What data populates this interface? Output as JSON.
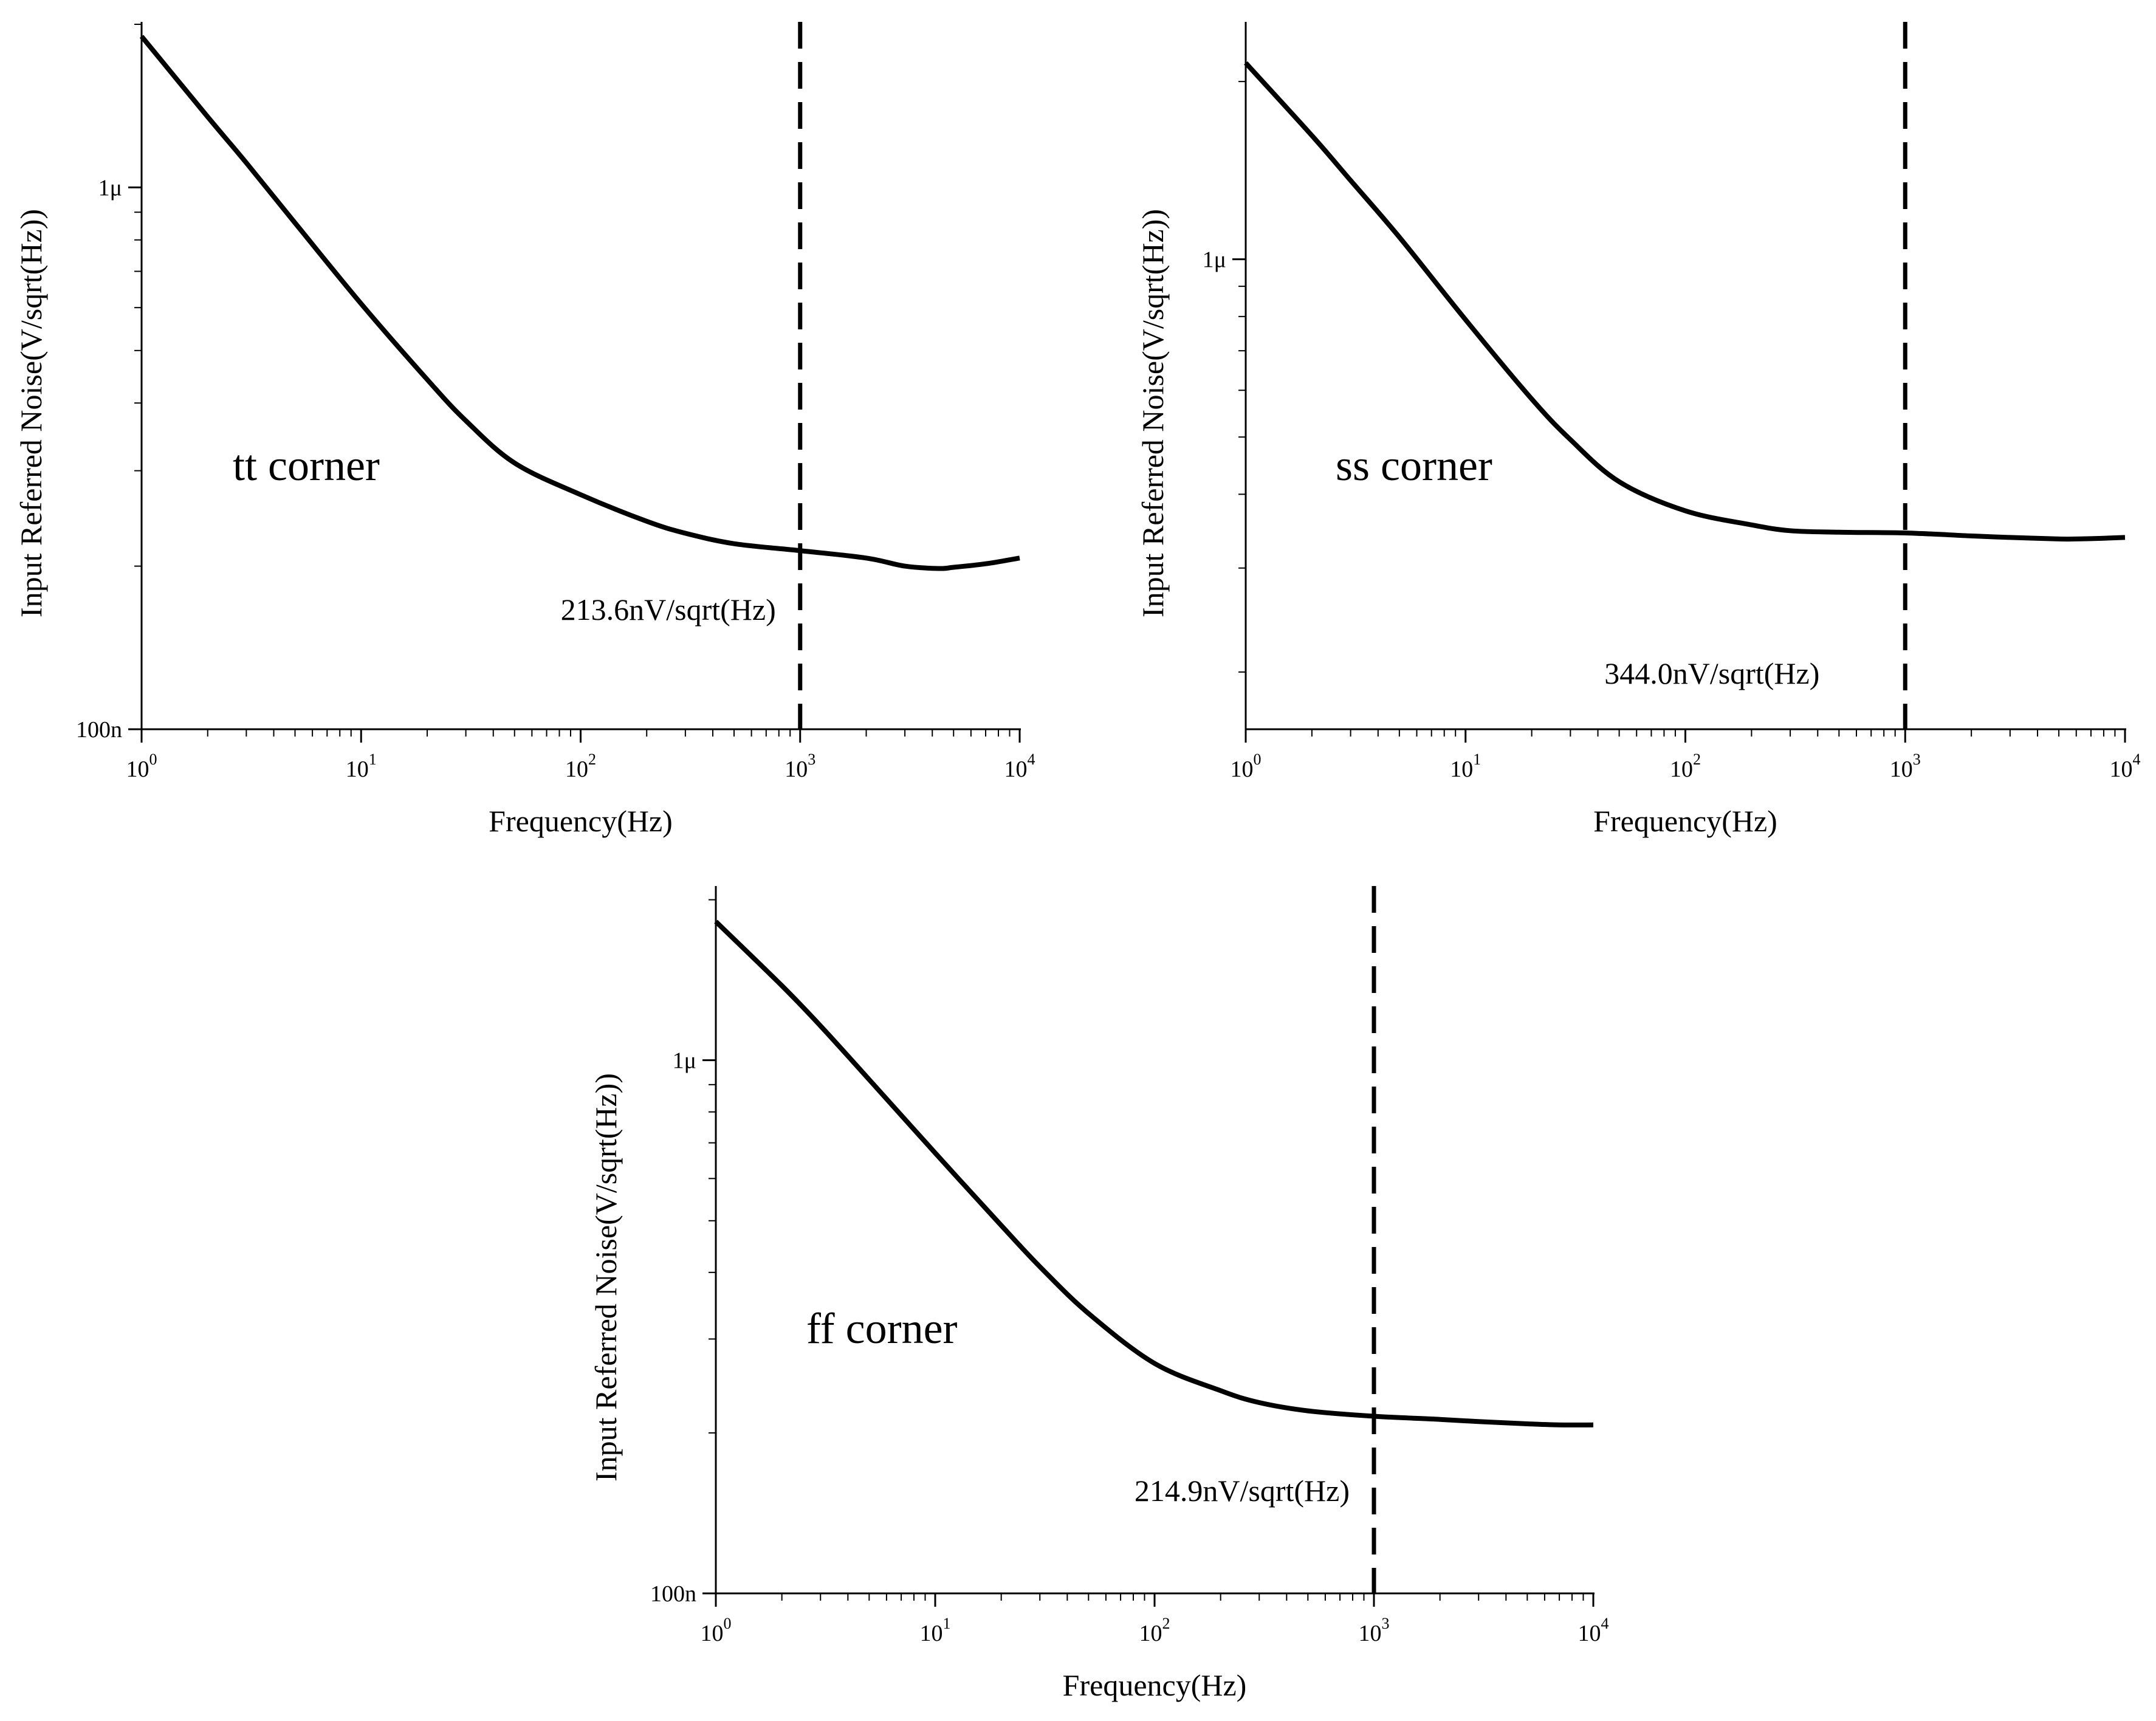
{
  "chart_data": [
    {
      "type": "line",
      "panel": "top-left",
      "title": "",
      "xlabel": "Frequency(Hz)",
      "ylabel": "Input Referred Noise(V/sqrt(Hz))",
      "xscale": "log",
      "yscale": "log",
      "xlim": [
        1,
        10000
      ],
      "ylim": [
        1e-07,
        2e-06
      ],
      "xticks": [
        {
          "value": 1,
          "base": "10",
          "exp": "0"
        },
        {
          "value": 10,
          "base": "10",
          "exp": "1"
        },
        {
          "value": 100,
          "base": "10",
          "exp": "2"
        },
        {
          "value": 1000,
          "base": "10",
          "exp": "3"
        },
        {
          "value": 10000,
          "base": "10",
          "exp": "4"
        }
      ],
      "yticks": [
        {
          "value": 1e-07,
          "label": "100n"
        },
        {
          "value": 1e-06,
          "label": "1μ"
        }
      ],
      "corner_label": "tt corner",
      "annotation": "213.6nV/sqrt(Hz)",
      "marker_frequency": 1000,
      "marker_style": "dashed",
      "series": [
        {
          "name": "tt",
          "x": [
            1,
            2,
            3,
            5,
            10,
            20,
            30,
            50,
            100,
            200,
            300,
            500,
            1000,
            2000,
            3000,
            4300,
            5000,
            7000,
            10000
          ],
          "values": [
            1.9e-06,
            1.35e-06,
            1.11e-06,
            8.6e-07,
            6.1e-07,
            4.42e-07,
            3.71e-07,
            3.1e-07,
            2.71e-07,
            2.42e-07,
            2.3e-07,
            2.2e-07,
            2.136e-07,
            2.07e-07,
            2e-07,
            1.98e-07,
            1.99e-07,
            2.02e-07,
            2.07e-07
          ]
        }
      ]
    },
    {
      "type": "line",
      "panel": "top-right",
      "title": "",
      "xlabel": "Frequency(Hz)",
      "ylabel": "Input Referred Noise(V/sqrt(Hz))",
      "xscale": "log",
      "yscale": "log",
      "xlim": [
        1,
        10000
      ],
      "ylim": [
        1.6e-07,
        2.5e-06
      ],
      "xticks": [
        {
          "value": 1,
          "base": "10",
          "exp": "0"
        },
        {
          "value": 10,
          "base": "10",
          "exp": "1"
        },
        {
          "value": 100,
          "base": "10",
          "exp": "2"
        },
        {
          "value": 1000,
          "base": "10",
          "exp": "3"
        },
        {
          "value": 10000,
          "base": "10",
          "exp": "4"
        }
      ],
      "yticks": [
        {
          "value": 1e-06,
          "label": "1μ"
        }
      ],
      "corner_label": "ss corner",
      "annotation": "344.0nV/sqrt(Hz)",
      "marker_frequency": 1000,
      "marker_style": "dashed",
      "series": [
        {
          "name": "ss",
          "x": [
            1,
            2,
            3,
            5,
            10,
            20,
            30,
            50,
            100,
            200,
            300,
            500,
            1000,
            2000,
            3000,
            5000,
            6000,
            8000,
            10000
          ],
          "values": [
            2.15e-06,
            1.62e-06,
            1.36e-06,
            1.09e-06,
            7.9e-07,
            5.8e-07,
            4.95e-07,
            4.2e-07,
            3.75e-07,
            3.55e-07,
            3.47e-07,
            3.45e-07,
            3.44e-07,
            3.4e-07,
            3.38e-07,
            3.36e-07,
            3.36e-07,
            3.37e-07,
            3.38e-07
          ]
        }
      ]
    },
    {
      "type": "line",
      "panel": "bottom-center",
      "title": "",
      "xlabel": "Frequency(Hz)",
      "ylabel": "Input Referred Noise(V/sqrt(Hz))",
      "xscale": "log",
      "yscale": "log",
      "xlim": [
        1,
        10000
      ],
      "ylim": [
        1e-07,
        2.1e-06
      ],
      "xticks": [
        {
          "value": 1,
          "base": "10",
          "exp": "0"
        },
        {
          "value": 10,
          "base": "10",
          "exp": "1"
        },
        {
          "value": 100,
          "base": "10",
          "exp": "2"
        },
        {
          "value": 1000,
          "base": "10",
          "exp": "3"
        },
        {
          "value": 10000,
          "base": "10",
          "exp": "4"
        }
      ],
      "yticks": [
        {
          "value": 1e-07,
          "label": "100n"
        },
        {
          "value": 1e-06,
          "label": "1μ"
        }
      ],
      "corner_label": "ff corner",
      "annotation": "214.9nV/sqrt(Hz)",
      "marker_frequency": 1000,
      "marker_style": "dashed",
      "series": [
        {
          "name": "ff",
          "x": [
            1,
            2,
            3,
            5,
            10,
            20,
            30,
            50,
            100,
            200,
            300,
            500,
            1000,
            2000,
            3000,
            5000,
            7000,
            10000
          ],
          "values": [
            1.82e-06,
            1.38e-06,
            1.16e-06,
            9.2e-07,
            6.7e-07,
            4.9e-07,
            4.1e-07,
            3.35e-07,
            2.7e-07,
            2.4e-07,
            2.28e-07,
            2.2e-07,
            2.149e-07,
            2.12e-07,
            2.1e-07,
            2.08e-07,
            2.07e-07,
            2.07e-07
          ]
        }
      ]
    }
  ]
}
